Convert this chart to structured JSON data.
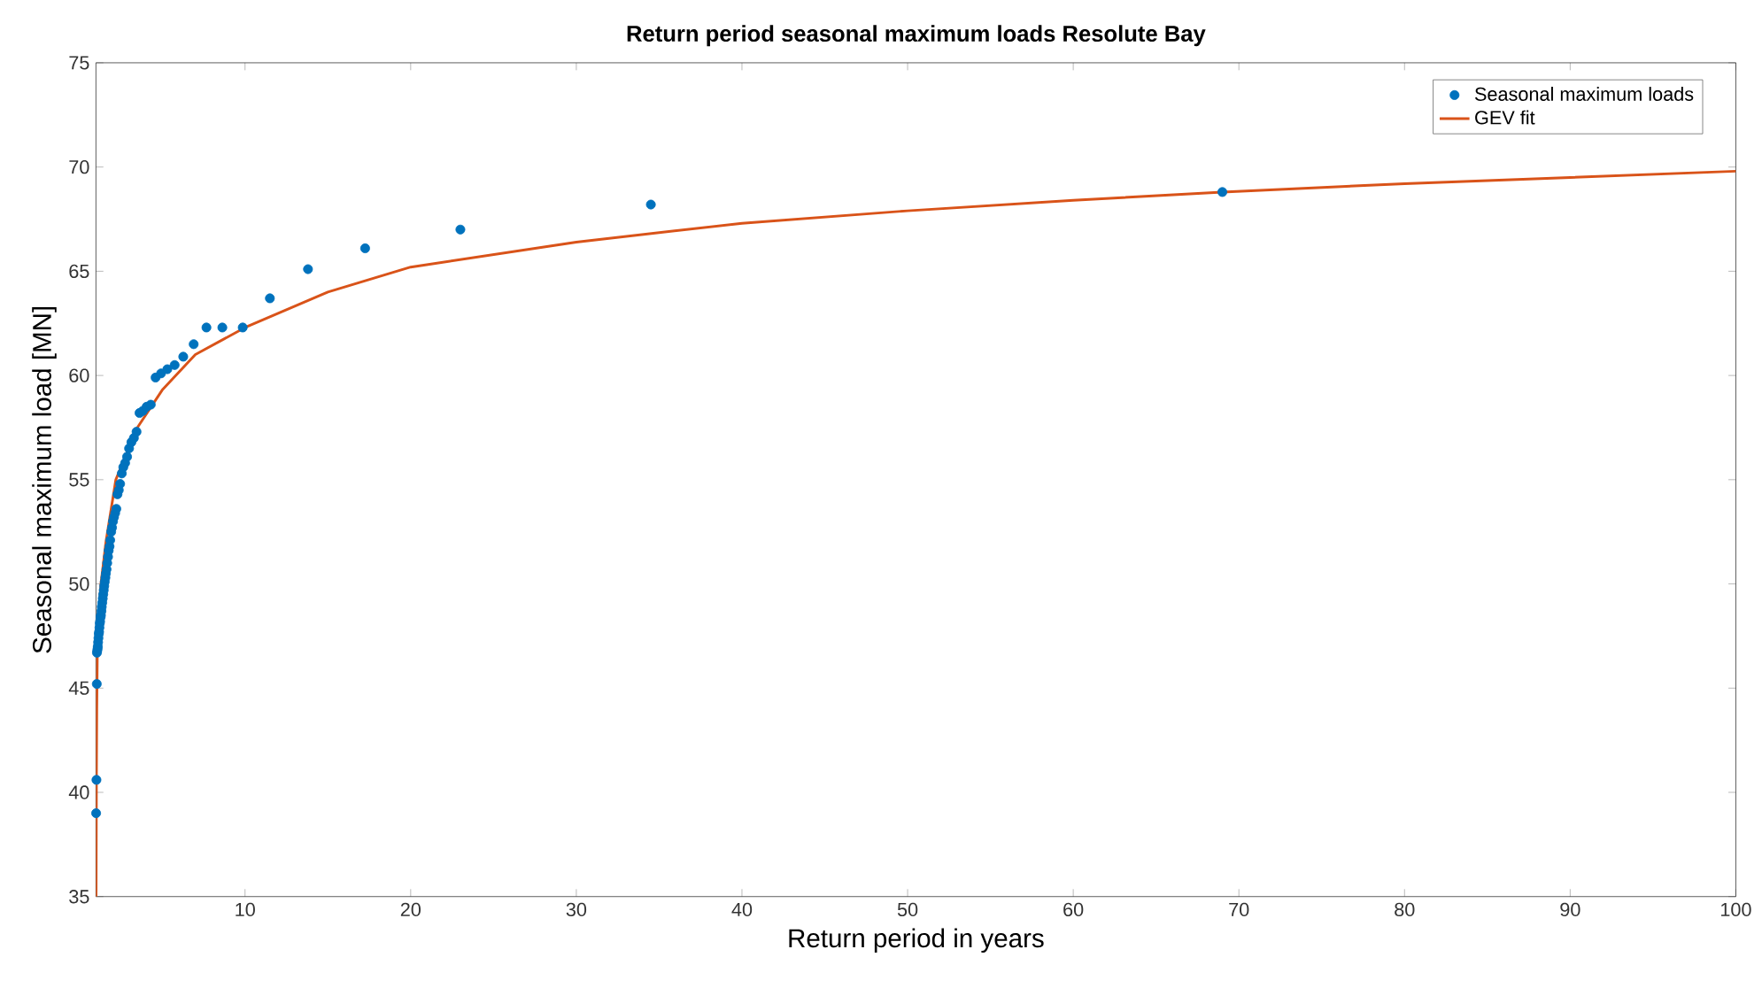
{
  "chart_data": {
    "type": "scatter",
    "title": "Return period seasonal maximum loads Resolute Bay",
    "xlabel": "Return period in years",
    "ylabel": "Seasonal maximum load [MN]",
    "xlim": [
      1,
      100
    ],
    "ylim": [
      35,
      75
    ],
    "xticks": [
      10,
      20,
      30,
      40,
      50,
      60,
      70,
      80,
      90,
      100
    ],
    "yticks": [
      35,
      40,
      45,
      50,
      55,
      60,
      65,
      70,
      75
    ],
    "legend": "top right",
    "grid": false,
    "series": [
      {
        "name": "Seasonal maximum loads",
        "marker": "circle",
        "color": "#0072bd",
        "x": [
          1.01,
          1.03,
          1.05,
          1.06,
          1.08,
          1.1,
          1.11,
          1.13,
          1.15,
          1.17,
          1.19,
          1.21,
          1.23,
          1.25,
          1.28,
          1.3,
          1.33,
          1.35,
          1.38,
          1.41,
          1.44,
          1.47,
          1.5,
          1.53,
          1.57,
          1.6,
          1.64,
          1.68,
          1.73,
          1.77,
          1.82,
          1.86,
          1.92,
          1.97,
          2.03,
          2.09,
          2.16,
          2.23,
          2.3,
          2.38,
          2.46,
          2.56,
          2.65,
          2.76,
          2.88,
          3.0,
          3.14,
          3.29,
          3.45,
          3.63,
          3.83,
          4.06,
          4.31,
          4.6,
          4.93,
          5.31,
          5.75,
          6.27,
          6.9,
          7.67,
          8.63,
          9.86,
          11.5,
          13.8,
          17.25,
          23,
          34.5,
          69
        ],
        "values": [
          39.0,
          40.6,
          45.2,
          46.7,
          46.8,
          46.9,
          47.0,
          47.2,
          47.4,
          47.6,
          47.7,
          47.9,
          48.1,
          48.2,
          48.4,
          48.5,
          48.7,
          48.9,
          49.1,
          49.3,
          49.5,
          49.7,
          49.9,
          50.1,
          50.3,
          50.5,
          50.7,
          51.0,
          51.3,
          51.6,
          51.8,
          52.1,
          52.5,
          52.7,
          53.0,
          53.2,
          53.4,
          53.6,
          54.3,
          54.5,
          54.8,
          55.3,
          55.6,
          55.8,
          56.1,
          56.5,
          56.8,
          57.0,
          57.3,
          58.2,
          58.3,
          58.5,
          58.6,
          59.9,
          60.1,
          60.3,
          60.5,
          60.9,
          61.5,
          62.3,
          62.3,
          62.3,
          63.7,
          65.1,
          66.1,
          67.0,
          68.2,
          68.8
        ]
      },
      {
        "name": "GEV fit",
        "type": "line",
        "marker": "none",
        "line_style": "solid",
        "color": "#d95319",
        "x": [
          1.01,
          1.02,
          1.03,
          1.05,
          1.08,
          1.15,
          1.3,
          1.6,
          2.2,
          3.5,
          5,
          7,
          10,
          15,
          20,
          25,
          30,
          40,
          50,
          60,
          69,
          80,
          90,
          100
        ],
        "values": [
          35,
          38,
          41,
          44,
          46.5,
          48.3,
          50,
          52,
          55,
          57.5,
          59.3,
          61,
          62.3,
          64,
          65.2,
          65.8,
          66.4,
          67.3,
          67.9,
          68.4,
          68.8,
          69.2,
          69.5,
          69.8
        ]
      }
    ]
  }
}
